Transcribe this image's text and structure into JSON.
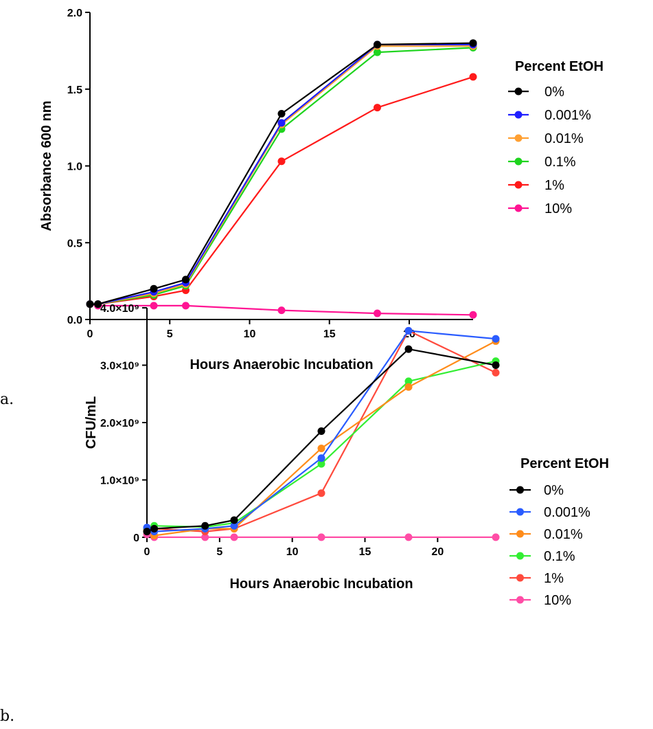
{
  "chart_data": [
    {
      "type": "line",
      "panel_label": "a.",
      "xlabel": "Hours Anaerobic Incubation",
      "ylabel": "Absorbance 600 nm",
      "xlim": [
        0,
        24
      ],
      "ylim": [
        0,
        2.0
      ],
      "xticks": [
        0,
        5,
        10,
        15,
        20
      ],
      "xtick_labels": [
        "0",
        "5",
        "10",
        "15",
        "20"
      ],
      "yticks": [
        0,
        0.5,
        1.0,
        1.5,
        2.0
      ],
      "ytick_labels": [
        "0.0",
        "0.5",
        "1.0",
        "1.5",
        "2.0"
      ],
      "grid": false,
      "legend_title": "Percent EtOH",
      "legend_position": "right",
      "x": [
        0,
        0.5,
        4,
        6,
        12,
        18,
        24
      ],
      "series": [
        {
          "name": "0%",
          "color": "#000000",
          "values": [
            0.1,
            0.1,
            0.2,
            0.26,
            1.34,
            1.79,
            1.8
          ]
        },
        {
          "name": "0.001%",
          "color": "#1f1fff",
          "values": [
            0.1,
            0.1,
            0.18,
            0.24,
            1.28,
            1.79,
            1.79
          ]
        },
        {
          "name": "0.01%",
          "color": "#ffa033",
          "values": [
            0.1,
            0.1,
            0.17,
            0.23,
            1.27,
            1.78,
            1.78
          ]
        },
        {
          "name": "0.1%",
          "color": "#1ed41e",
          "values": [
            0.1,
            0.1,
            0.16,
            0.22,
            1.24,
            1.74,
            1.77
          ]
        },
        {
          "name": "1%",
          "color": "#ff1a1a",
          "values": [
            0.1,
            0.1,
            0.15,
            0.19,
            1.03,
            1.38,
            1.58
          ]
        },
        {
          "name": "10%",
          "color": "#ff1493",
          "values": [
            0.1,
            0.09,
            0.09,
            0.09,
            0.06,
            0.04,
            0.03
          ]
        }
      ]
    },
    {
      "type": "line",
      "panel_label": "b.",
      "xlabel": "Hours Anaerobic Incubation",
      "ylabel": "CFU/mL",
      "xlim": [
        0,
        24
      ],
      "ylim": [
        0,
        4000000000.0
      ],
      "xticks": [
        0,
        5,
        10,
        15,
        20
      ],
      "xtick_labels": [
        "0",
        "5",
        "10",
        "15",
        "20"
      ],
      "yticks": [
        0,
        1000000000.0,
        2000000000.0,
        3000000000.0,
        4000000000.0
      ],
      "ytick_labels": [
        "0",
        "1.0×10⁹",
        "2.0×10⁹",
        "3.0×10⁹",
        "4.0×10⁹"
      ],
      "grid": false,
      "legend_title": "Percent  EtOH",
      "legend_position": "right",
      "x": [
        0,
        0.5,
        4,
        6,
        12,
        18,
        24
      ],
      "series": [
        {
          "name": "0%",
          "color": "#000000",
          "values": [
            100000000.0,
            150000000.0,
            200000000.0,
            300000000.0,
            1850000000.0,
            3280000000.0,
            3000000000.0
          ]
        },
        {
          "name": "0.001%",
          "color": "#2a5cff",
          "values": [
            170000000.0,
            100000000.0,
            150000000.0,
            200000000.0,
            1380000000.0,
            3600000000.0,
            3460000000.0
          ]
        },
        {
          "name": "0.01%",
          "color": "#ff8c1a",
          "values": [
            120000000.0,
            30000000.0,
            150000000.0,
            150000000.0,
            1550000000.0,
            2620000000.0,
            3420000000.0
          ]
        },
        {
          "name": "0.1%",
          "color": "#33ee33",
          "values": [
            150000000.0,
            200000000.0,
            180000000.0,
            250000000.0,
            1280000000.0,
            2720000000.0,
            3070000000.0
          ]
        },
        {
          "name": "1%",
          "color": "#ff4a3d",
          "values": [
            100000000.0,
            150000000.0,
            100000000.0,
            150000000.0,
            770000000.0,
            3600000000.0,
            2870000000.0
          ]
        },
        {
          "name": "10%",
          "color": "#ff4da6",
          "values": [
            50000000.0,
            1000000.0,
            1000000.0,
            1000000.0,
            1000000.0,
            1000000.0,
            1000000.0
          ]
        }
      ]
    }
  ]
}
